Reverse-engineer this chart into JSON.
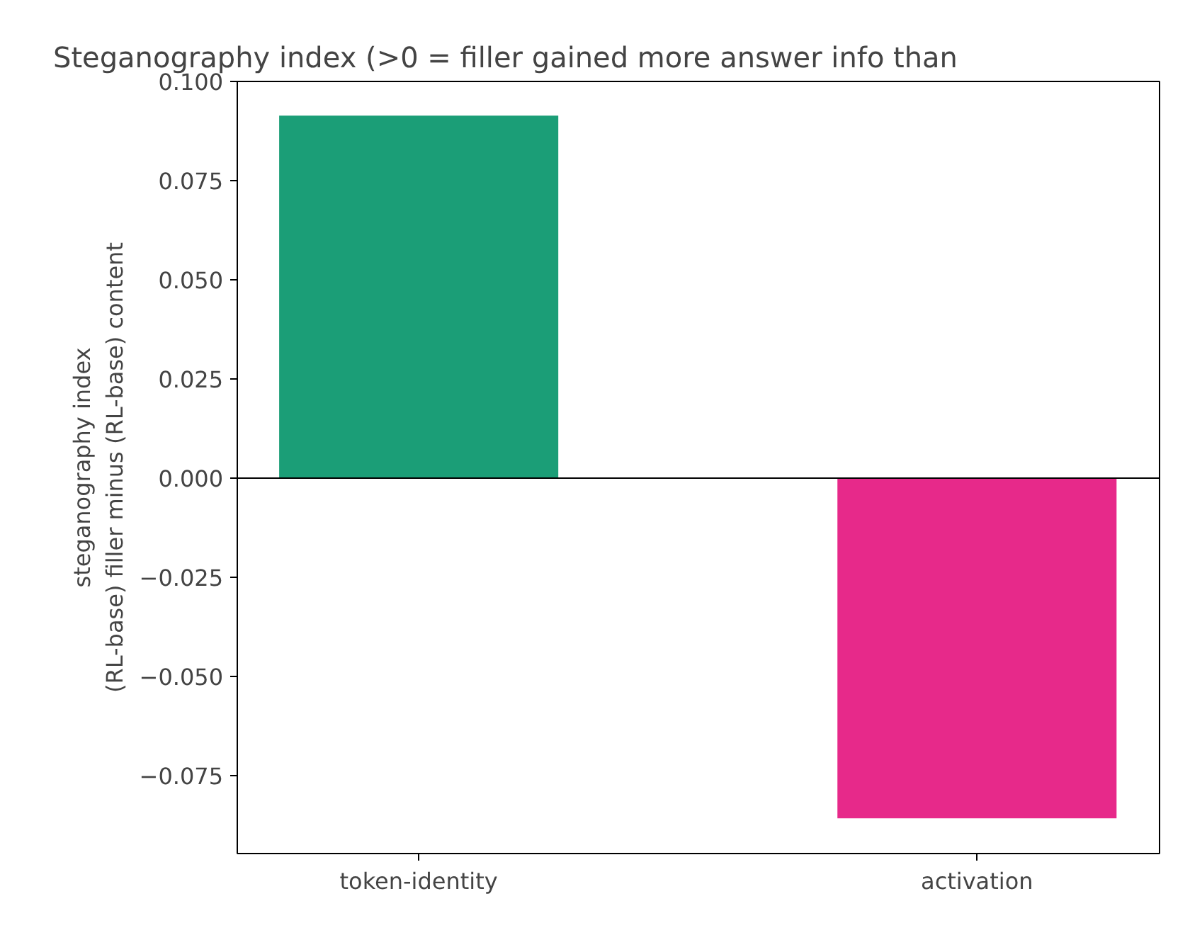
{
  "chart_data": {
    "type": "bar",
    "title": "Steganography index (>0 = filler gained more answer info than",
    "ylabel": "steganography index\n(RL-base) filler minus (RL-base) content",
    "categories": [
      "token-identity",
      "activation"
    ],
    "values": [
      0.0914,
      -0.0857
    ],
    "colors": [
      "#1b9e77",
      "#e7298a"
    ],
    "ylim": [
      -0.0946,
      0.1
    ],
    "yticks": [
      {
        "value": -0.075,
        "label": "−0.075"
      },
      {
        "value": -0.05,
        "label": "−0.050"
      },
      {
        "value": -0.025,
        "label": "−0.025"
      },
      {
        "value": 0,
        "label": "0.000"
      },
      {
        "value": 0.025,
        "label": "0.025"
      },
      {
        "value": 0.05,
        "label": "0.050"
      },
      {
        "value": 0.075,
        "label": "0.075"
      },
      {
        "value": 0.1,
        "label": "0.100"
      }
    ],
    "ref_lines": [
      {
        "axis": "y",
        "value": 0,
        "color": "#000000"
      }
    ],
    "grid": false
  }
}
